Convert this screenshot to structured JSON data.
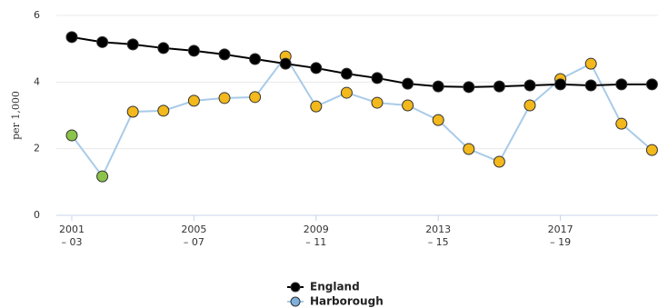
{
  "chart_data": {
    "type": "line",
    "y_label": "per 1,000",
    "categories": [
      [
        "2001",
        "– 03"
      ],
      null,
      null,
      null,
      [
        "2005",
        "– 07"
      ],
      null,
      null,
      null,
      [
        "2009",
        "– 11"
      ],
      null,
      null,
      null,
      [
        "2013",
        "– 15"
      ],
      null,
      null,
      null,
      [
        "2017",
        "– 19"
      ],
      null,
      null,
      null
    ],
    "series": [
      {
        "name": "England",
        "color": "#000000",
        "marker_color": "#000000",
        "values": [
          5.35,
          5.2,
          5.13,
          5.02,
          4.94,
          4.83,
          4.69,
          4.55,
          4.42,
          4.25,
          4.12,
          3.95,
          3.87,
          3.85,
          3.87,
          3.9,
          3.93,
          3.9,
          3.93,
          3.93
        ]
      },
      {
        "name": "Harborough",
        "color": "#a8cbe8",
        "marker_color": "#7fb0dc",
        "values": [
          2.4,
          1.17,
          3.11,
          3.14,
          3.44,
          3.52,
          3.55,
          4.77,
          3.27,
          3.68,
          3.38,
          3.3,
          2.86,
          1.99,
          1.61,
          3.3,
          4.09,
          4.55,
          2.75,
          1.96
        ],
        "point_colors": [
          "#8cc34a",
          "#8cc34a",
          "#f2b81c",
          "#f2b81c",
          "#f2b81c",
          "#f2b81c",
          "#f2b81c",
          "#f2b81c",
          "#f2b81c",
          "#f2b81c",
          "#f2b81c",
          "#f2b81c",
          "#f2b81c",
          "#f2b81c",
          "#f2b81c",
          "#f2b81c",
          "#f2b81c",
          "#f2b81c",
          "#f2b81c",
          "#f2b81c"
        ]
      }
    ],
    "ylim": [
      0,
      6
    ],
    "yticks": [
      0,
      2,
      4,
      6
    ],
    "grid": true,
    "legend": "bottom"
  }
}
